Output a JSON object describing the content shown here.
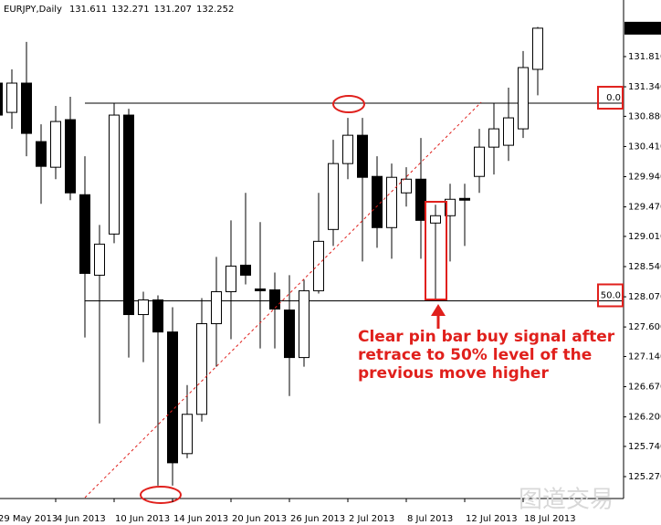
{
  "chart_data": {
    "type": "candlestick",
    "title": "EURJPY,Daily",
    "categories": [
      "29 May 2013",
      null,
      null,
      null,
      "4 Jun 2013",
      null,
      null,
      null,
      "10 Jun 2013",
      null,
      null,
      null,
      "14 Jun 2013",
      null,
      null,
      null,
      "20 Jun 2013",
      null,
      null,
      null,
      "26 Jun 2013",
      null,
      null,
      null,
      "2 Jul 2013",
      null,
      null,
      null,
      "8 Jul 2013",
      null,
      null,
      null,
      "12 Jul 2013",
      null,
      null,
      null,
      "18 Jul 2013",
      null
    ],
    "open": [
      131.397,
      130.941,
      131.397,
      130.486,
      130.087,
      130.828,
      129.659,
      128.406,
      129.047,
      130.899,
      127.793,
      128.021,
      127.522,
      125.628,
      126.24,
      127.651,
      128.149,
      128.562,
      128.192,
      128.178,
      127.864,
      127.124,
      128.164,
      129.118,
      130.144,
      130.585,
      129.944,
      129.147,
      129.688,
      129.901,
      129.218,
      129.332,
      129.602,
      129.944,
      130.4,
      130.429,
      130.685,
      131.611
    ],
    "high": [
      131.611,
      131.611,
      132.038,
      130.756,
      131.041,
      131.184,
      130.258,
      129.189,
      131.084,
      130.998,
      128.149,
      128.092,
      127.907,
      126.696,
      128.05,
      128.691,
      129.26,
      129.688,
      129.232,
      128.448,
      128.406,
      128.335,
      129.688,
      130.514,
      130.856,
      130.856,
      130.258,
      130.144,
      130.087,
      130.543,
      129.503,
      129.83,
      129.83,
      130.685,
      131.084,
      131.326,
      131.896,
      132.271
    ],
    "low": [
      130.756,
      130.685,
      130.258,
      129.517,
      129.901,
      129.574,
      127.437,
      126.098,
      128.904,
      127.124,
      127.052,
      125.129,
      125.129,
      125.556,
      126.126,
      126.981,
      127.409,
      128.263,
      127.266,
      127.266,
      126.525,
      126.981,
      128.121,
      128.862,
      129.901,
      128.619,
      128.833,
      128.662,
      129.474,
      128.662,
      128.007,
      128.619,
      128.862,
      129.688,
      129.973,
      130.186,
      130.543,
      131.207
    ],
    "close": [
      130.899,
      131.397,
      130.614,
      130.101,
      130.799,
      129.688,
      128.434,
      128.89,
      130.899,
      127.793,
      128.021,
      127.522,
      125.485,
      126.24,
      127.651,
      128.149,
      128.548,
      128.406,
      128.164,
      127.879,
      127.124,
      128.164,
      128.933,
      130.144,
      130.585,
      129.93,
      129.147,
      129.93,
      129.901,
      129.26,
      129.332,
      129.588,
      129.574,
      130.4,
      130.685,
      130.856,
      131.639,
      132.252
    ],
    "up_color": "#ffffff",
    "down_color": "#000000",
    "ylim": [
      124.943,
      132.691
    ],
    "yticks": [
      {
        "value": 131.81,
        "label": "131.810"
      },
      {
        "value": 131.34,
        "label": "131.340"
      },
      {
        "value": 130.88,
        "label": "130.880"
      },
      {
        "value": 130.41,
        "label": "130.410"
      },
      {
        "value": 129.94,
        "label": "129.940"
      },
      {
        "value": 129.47,
        "label": "129.470"
      },
      {
        "value": 129.01,
        "label": "129.010"
      },
      {
        "value": 128.54,
        "label": "128.540"
      },
      {
        "value": 128.07,
        "label": "128.070"
      },
      {
        "value": 127.6,
        "label": "127.600"
      },
      {
        "value": 127.14,
        "label": "127.140"
      },
      {
        "value": 126.67,
        "label": "126.670"
      },
      {
        "value": 126.2,
        "label": "126.200"
      },
      {
        "value": 125.74,
        "label": "125.740"
      },
      {
        "value": 125.27,
        "label": "125.270"
      }
    ],
    "levels": [
      {
        "value": 131.084,
        "label": "0.0"
      },
      {
        "value": 128.007,
        "label": "50.0"
      }
    ],
    "annotation": [
      "Clear pin bar buy signal after",
      "retrace to 50% level of the",
      "previous move higher"
    ],
    "watermark": "图道交易"
  }
}
